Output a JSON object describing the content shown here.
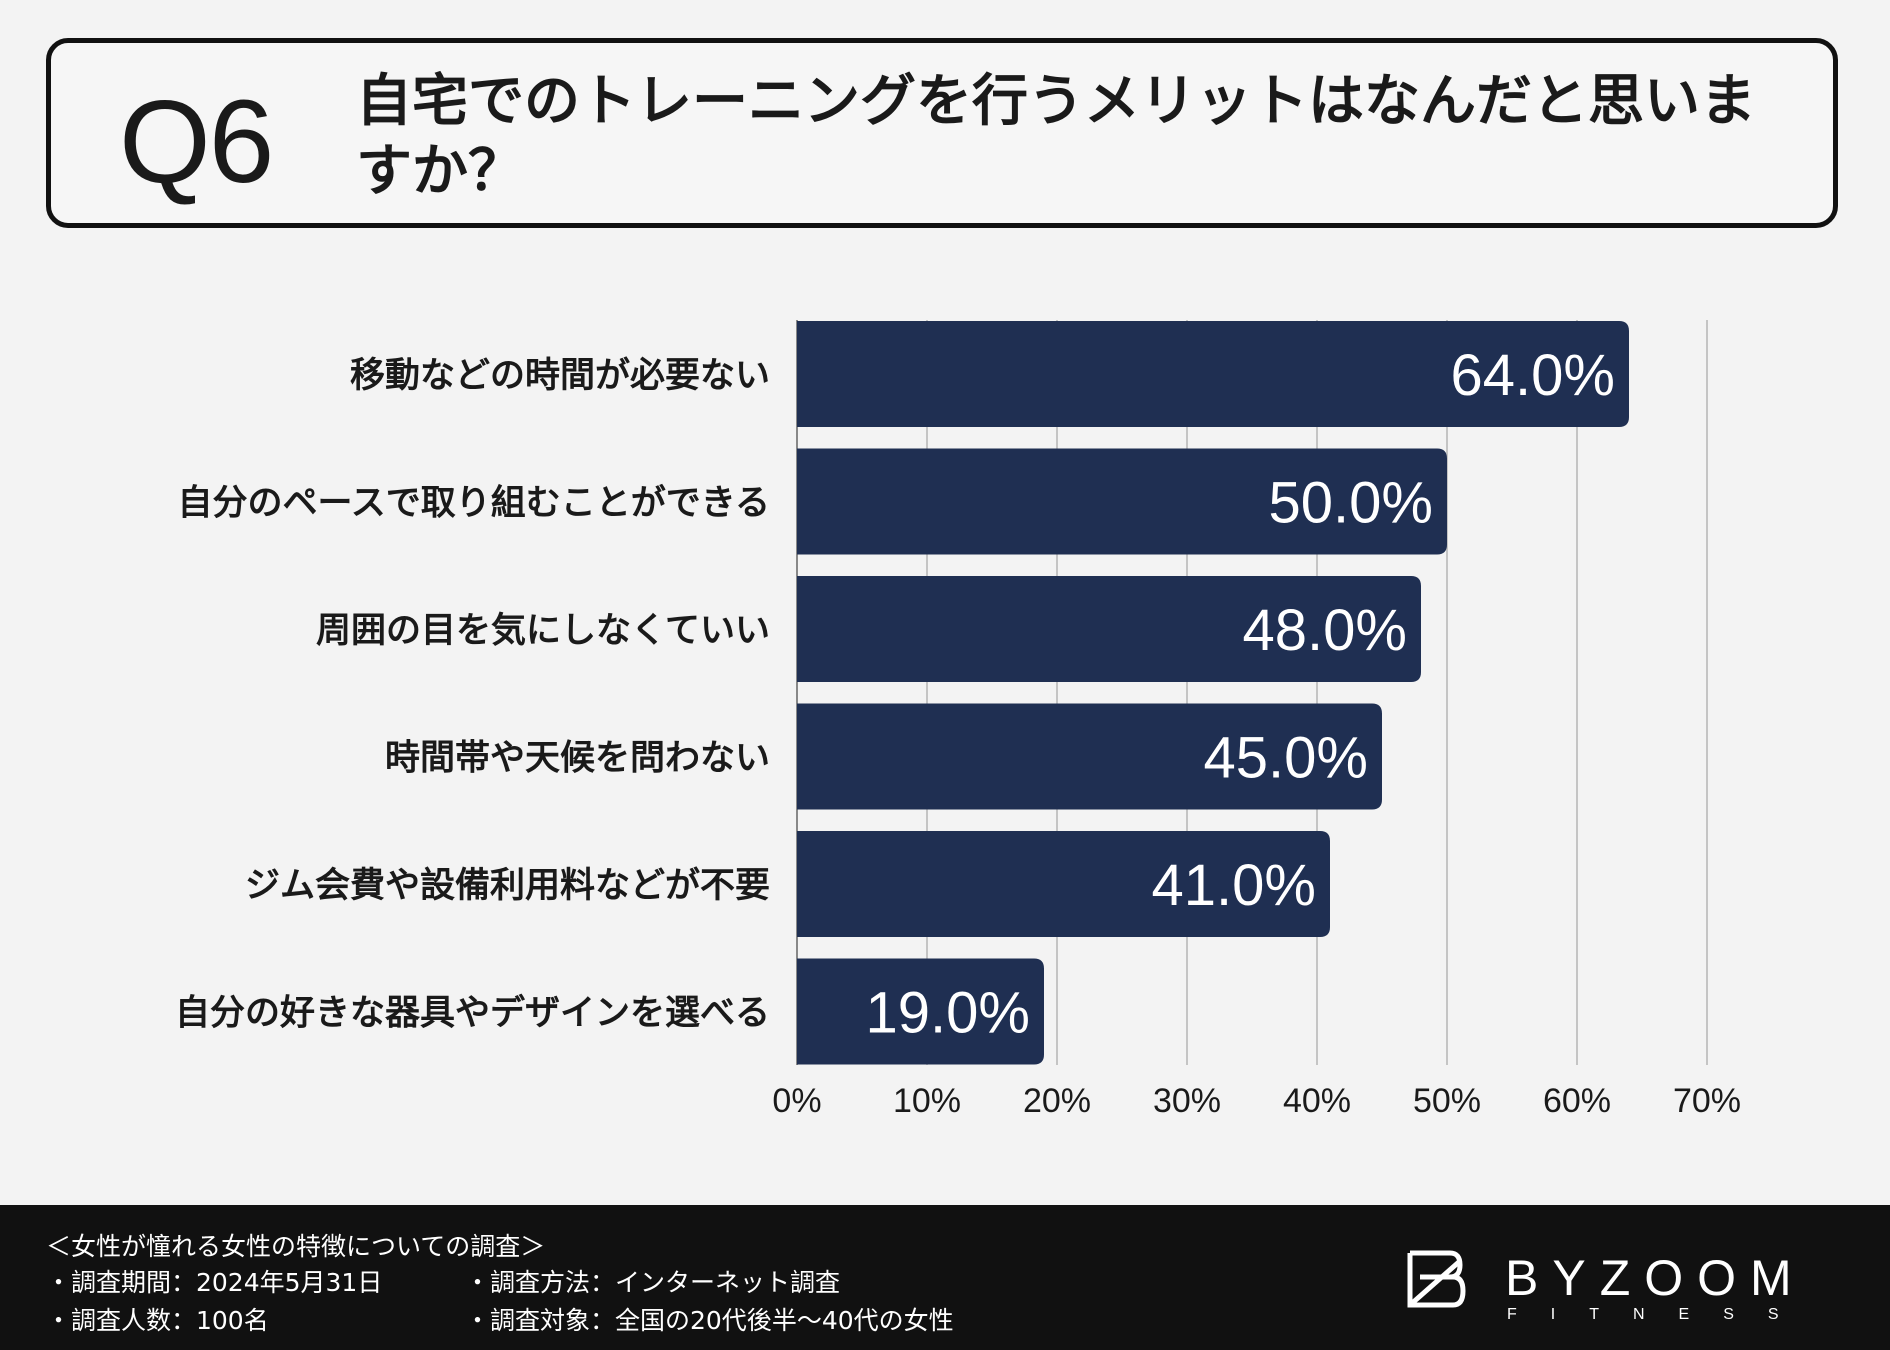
{
  "header": {
    "q_label": "Q6",
    "question": "自宅でのトレーニングを行うメリットはなんだと思いますか？"
  },
  "chart_data": {
    "type": "bar",
    "orientation": "horizontal",
    "categories": [
      "移動などの時間が必要ない",
      "自分のペースで取り組むことができる",
      "周囲の目を気にしなくていい",
      "時間帯や天候を問わない",
      "ジム会費や設備利用料などが不要",
      "自分の好きな器具やデザインを選べる"
    ],
    "values": [
      64.0,
      50.0,
      48.0,
      45.0,
      41.0,
      19.0
    ],
    "value_labels": [
      "64.0%",
      "50.0%",
      "48.0%",
      "45.0%",
      "41.0%",
      "19.0%"
    ],
    "xlim": [
      0,
      70
    ],
    "xticks": [
      "0%",
      "10%",
      "20%",
      "30%",
      "40%",
      "50%",
      "60%",
      "70%"
    ],
    "grid": true,
    "bar_color": "#1f2f52",
    "label_color": "#ffffff"
  },
  "footer": {
    "survey_title": "＜女性が憧れる女性の特徴についての調査＞",
    "period": "・調査期間：2024年5月31日",
    "method": "・調査方法：インターネット調査",
    "count": "・調査人数：100名",
    "target": "・調査対象：全国の20代後半〜40代の女性",
    "logo_main": "BYZOOM",
    "logo_sub": "FITNESS"
  }
}
